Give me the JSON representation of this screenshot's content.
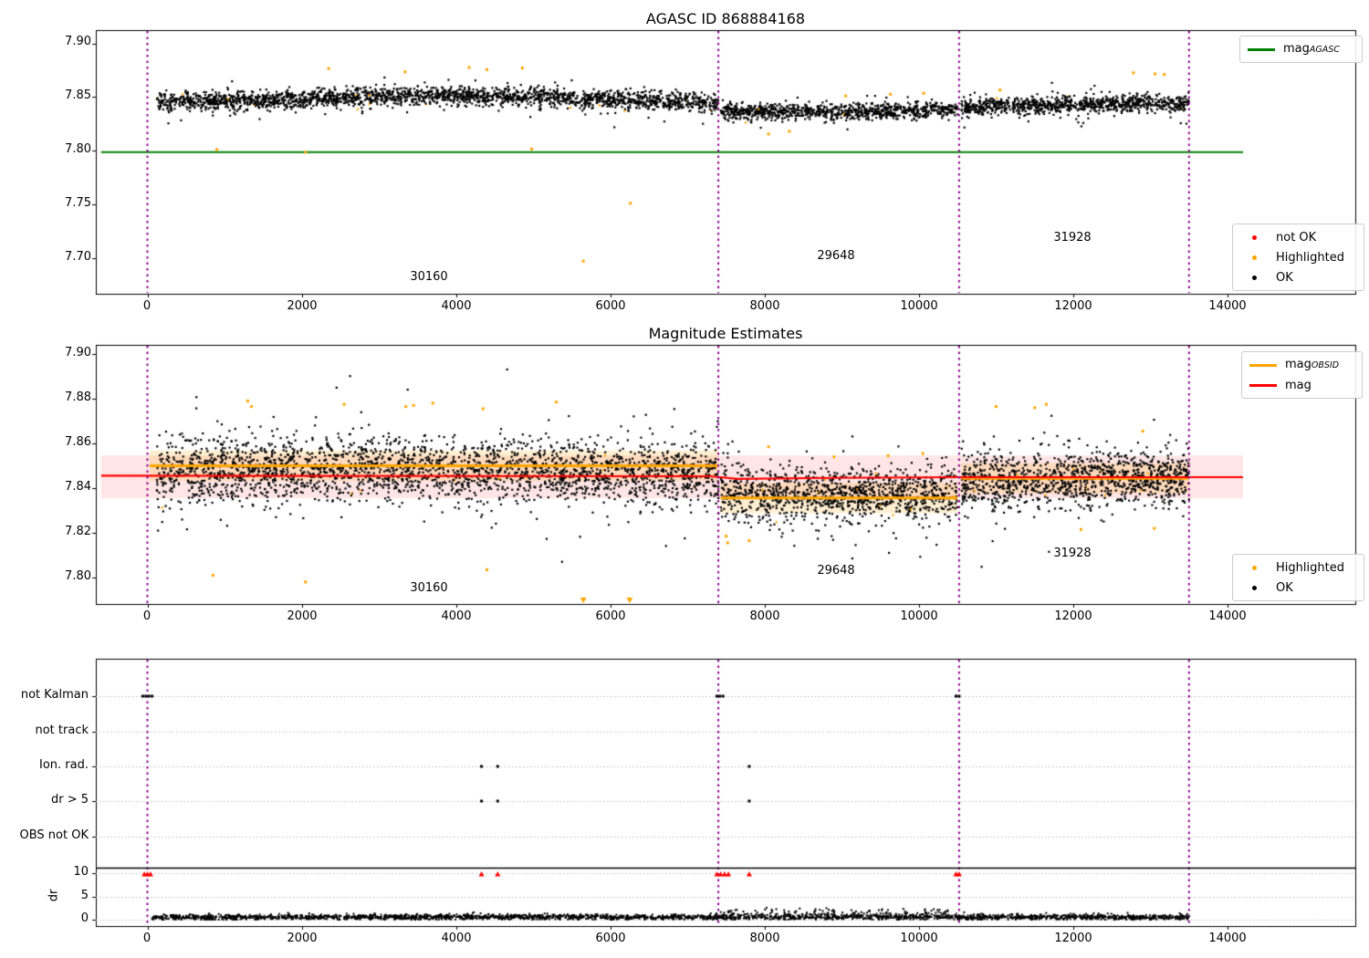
{
  "colors": {
    "ok": "#000000",
    "not_ok": "#ff0000",
    "highlighted": "#ffa500",
    "mag_agasc": "#008000",
    "mag_obsid": "#ffa500",
    "mag": "#ff0000",
    "boundary": "#8b008b",
    "grid": "#bbbbbb"
  },
  "plots": {
    "top": {
      "title": "AGASC ID 868884168",
      "yticks": [
        "7.90",
        "7.85",
        "7.80",
        "7.75",
        "7.70"
      ],
      "xticks": [
        "0",
        "2000",
        "4000",
        "6000",
        "8000",
        "10000",
        "12000",
        "14000"
      ],
      "legend_line": {
        "main": "mag",
        "sub": "AGASC"
      },
      "legend_points": {
        "not_ok": "not OK",
        "highlighted": "Highlighted",
        "ok": "OK"
      },
      "annotations": {
        "a0": "30160",
        "a1": "29648",
        "a2": "31928"
      }
    },
    "middle": {
      "title": "Magnitude Estimates",
      "yticks": [
        "7.90",
        "7.88",
        "7.86",
        "7.84",
        "7.82",
        "7.80"
      ],
      "xticks": [
        "0",
        "2000",
        "4000",
        "6000",
        "8000",
        "10000",
        "12000",
        "14000"
      ],
      "legend_lines": {
        "obsid_main": "mag",
        "obsid_sub": "OBSID",
        "mag": "mag"
      },
      "legend_points": {
        "highlighted": "Highlighted",
        "ok": "OK"
      },
      "annotations": {
        "a0": "30160",
        "a1": "29648",
        "a2": "31928"
      }
    },
    "bottom": {
      "categories": [
        "not Kalman",
        "not track",
        "Ion. rad.",
        "dr > 5",
        "OBS not OK"
      ],
      "dr_ticks": [
        "10",
        "5",
        "0"
      ],
      "ylabel": "dr",
      "xticks": [
        "0",
        "2000",
        "4000",
        "6000",
        "8000",
        "10000",
        "12000",
        "14000"
      ]
    }
  },
  "chart_data": [
    {
      "id": "agasc_mag",
      "type": "scatter",
      "title": "AGASC ID 868884168",
      "xlim": [
        -670,
        15660
      ],
      "ylim": [
        7.667,
        7.912
      ],
      "xtick_values": [
        0,
        2000,
        4000,
        6000,
        8000,
        10000,
        12000,
        14000
      ],
      "ytick_values": [
        7.9,
        7.85,
        7.8,
        7.75,
        7.7
      ],
      "legend": [
        "mag_AGASC",
        "not OK",
        "Highlighted",
        "OK"
      ],
      "mag_agasc_line": {
        "y": 7.7985,
        "x0": -600,
        "x1": 14200
      },
      "obsid_boundaries_x": [
        0,
        7400,
        10520,
        13500
      ],
      "obsid_labels": [
        {
          "text": "30160",
          "x": 3650,
          "y": 7.677
        },
        {
          "text": "29648",
          "x": 8950,
          "y": 7.696
        },
        {
          "text": "31928",
          "x": 12000,
          "y": 7.713
        }
      ],
      "ok_segments": [
        {
          "x0": 120,
          "x1": 7400,
          "n": 2300,
          "mean": [
            [
              120,
              7.846
            ],
            [
              1500,
              7.8468
            ],
            [
              3200,
              7.8512
            ],
            [
              5200,
              7.8498
            ],
            [
              7400,
              7.8438
            ]
          ],
          "sd": 0.0042
        },
        {
          "x0": 7430,
          "x1": 10500,
          "n": 950,
          "mean": [
            [
              7430,
              7.8368
            ],
            [
              9000,
              7.8362
            ],
            [
              10500,
              7.8378
            ]
          ],
          "sd": 0.0037
        },
        {
          "x0": 10550,
          "x1": 13500,
          "n": 950,
          "mean": [
            [
              10550,
              7.8405
            ],
            [
              12000,
              7.8432
            ],
            [
              13500,
              7.8448
            ]
          ],
          "sd": 0.004
        }
      ],
      "highlighted_fraction": 0.007,
      "highlighted_points": [
        [
          900,
          7.801
        ],
        [
          2050,
          7.7985
        ],
        [
          4980,
          7.8015
        ],
        [
          5650,
          7.697
        ],
        [
          6260,
          7.751
        ],
        [
          2350,
          7.8765
        ],
        [
          3340,
          7.8735
        ],
        [
          4170,
          7.8775
        ],
        [
          4860,
          7.877
        ],
        [
          4400,
          7.8755
        ],
        [
          8050,
          7.8155
        ],
        [
          8320,
          7.818
        ],
        [
          9050,
          7.851
        ],
        [
          9630,
          7.8525
        ],
        [
          10060,
          7.8535
        ],
        [
          11050,
          7.8565
        ],
        [
          12780,
          7.8725
        ],
        [
          13060,
          7.8715
        ],
        [
          13180,
          7.871
        ]
      ]
    },
    {
      "id": "magnitude_estimates",
      "type": "scatter",
      "title": "Magnitude Estimates",
      "xlim": [
        -670,
        15660
      ],
      "ylim": [
        7.788,
        7.904
      ],
      "xtick_values": [
        0,
        2000,
        4000,
        6000,
        8000,
        10000,
        12000,
        14000
      ],
      "ytick_values": [
        7.9,
        7.88,
        7.86,
        7.84,
        7.82,
        7.8
      ],
      "legend": [
        "mag_OBSID",
        "mag",
        "Highlighted",
        "OK"
      ],
      "mag_line": {
        "points": [
          [
            -600,
            7.8456
          ],
          [
            7300,
            7.8453
          ],
          [
            7650,
            7.8441
          ],
          [
            8900,
            7.8446
          ],
          [
            10520,
            7.8449
          ],
          [
            14200,
            7.8449
          ]
        ],
        "band_lo": 7.8355,
        "band_hi": 7.8546,
        "band_x0": -600,
        "band_x1": 14200
      },
      "obsid_lines": [
        {
          "x0": 30,
          "x1": 7400,
          "y": 7.85
        },
        {
          "x0": 7430,
          "x1": 10500,
          "y": 7.8356
        },
        {
          "x0": 10550,
          "x1": 13500,
          "y": 7.8444
        }
      ],
      "obsid_band_halfwidth": 0.0068,
      "obsid_boundaries_x": [
        0,
        7400,
        10520,
        13500
      ],
      "obsid_labels": [
        {
          "text": "30160",
          "x": 3650,
          "y": 7.7925
        },
        {
          "text": "29648",
          "x": 8950,
          "y": 7.8
        },
        {
          "text": "31928",
          "x": 12000,
          "y": 7.808
        }
      ],
      "ok_segments": [
        {
          "x0": 120,
          "x1": 7400,
          "n": 2600,
          "mean": [
            [
              120,
              7.8478
            ],
            [
              3000,
              7.8482
            ],
            [
              7400,
              7.8462
            ]
          ],
          "sd": 0.0072
        },
        {
          "x0": 7430,
          "x1": 10500,
          "n": 1150,
          "mean": [
            [
              7430,
              7.8378
            ],
            [
              10500,
              7.8378
            ]
          ],
          "sd": 0.006
        },
        {
          "x0": 10550,
          "x1": 13500,
          "n": 1150,
          "mean": [
            [
              10550,
              7.8428
            ],
            [
              13500,
              7.8442
            ]
          ],
          "sd": 0.0063
        }
      ],
      "highlighted_fraction": 0.008,
      "highlighted_points": [
        [
          850,
          7.801
        ],
        [
          2050,
          7.798
        ],
        [
          4400,
          7.8035
        ],
        [
          1300,
          7.879
        ],
        [
          1350,
          7.8765
        ],
        [
          2550,
          7.8775
        ],
        [
          3350,
          7.8765
        ],
        [
          3450,
          7.877
        ],
        [
          3700,
          7.878
        ],
        [
          5300,
          7.8785
        ],
        [
          4350,
          7.8755
        ],
        [
          8050,
          7.8585
        ],
        [
          8900,
          7.854
        ],
        [
          9600,
          7.8545
        ],
        [
          10050,
          7.8555
        ],
        [
          11000,
          7.8765
        ],
        [
          11500,
          7.876
        ],
        [
          11650,
          7.8775
        ],
        [
          12900,
          7.8655
        ],
        [
          7500,
          7.8185
        ],
        [
          7520,
          7.8155
        ],
        [
          7800,
          7.8165
        ],
        [
          13050,
          7.822
        ],
        [
          12100,
          7.8215
        ]
      ],
      "clipped_low_x": [
        5650,
        6250
      ]
    },
    {
      "id": "flags_and_dr",
      "type": "scatter",
      "categories": [
        "not Kalman",
        "not track",
        "Ion. rad.",
        "dr > 5",
        "OBS not OK"
      ],
      "xtick_values": [
        0,
        2000,
        4000,
        6000,
        8000,
        10000,
        12000,
        14000
      ],
      "dr_tick_values": [
        10,
        5,
        0
      ],
      "obsid_boundaries_x": [
        0,
        7400,
        10520,
        13500
      ],
      "flag_events": {
        "not Kalman": [
          -60,
          -20,
          20,
          60,
          7380,
          7420,
          7460,
          10480,
          10520
        ],
        "not track": [],
        "Ion. rad.": [
          4330,
          4540,
          7800
        ],
        "dr > 5": [
          4330,
          4540,
          7800
        ],
        "OBS not OK": []
      },
      "dr_over_10_x": [
        -40,
        0,
        40,
        4330,
        4540,
        7380,
        7430,
        7480,
        7530,
        7800,
        10480,
        10520
      ],
      "dr_scatter": {
        "x0": 60,
        "x1": 13500,
        "n": 2800,
        "base": 0.55,
        "sd": 0.3,
        "wild_x0": 7400,
        "wild_x1": 10500,
        "wild_extra": 0.5
      }
    }
  ]
}
